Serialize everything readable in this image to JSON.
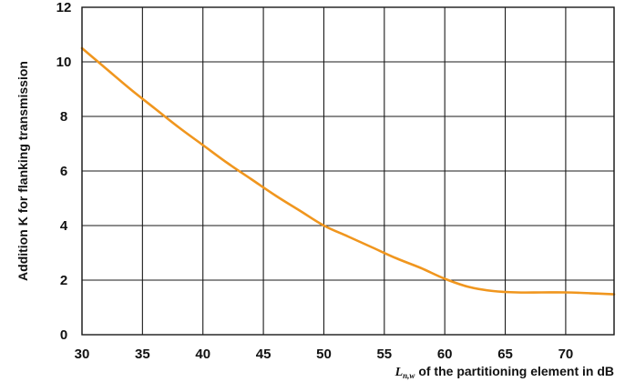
{
  "chart_data": {
    "type": "line",
    "xlabel_symbol": "L",
    "xlabel_subscript": "n,w",
    "xlabel_rest": " of the partitioning element in dB",
    "ylabel": "Addition K for flanking transmission",
    "xlim": [
      30,
      74
    ],
    "ylim": [
      0,
      12
    ],
    "x_ticks": [
      30,
      35,
      40,
      45,
      50,
      55,
      60,
      65,
      70
    ],
    "y_ticks": [
      0,
      2,
      4,
      6,
      8,
      10,
      12
    ],
    "grid": true,
    "line_color": "#f0961e",
    "series": [
      {
        "x": [
          30,
          32,
          34,
          36,
          38,
          40,
          42,
          44,
          46,
          48,
          50,
          52,
          54,
          56,
          58,
          60,
          62,
          64,
          66,
          68,
          70,
          72,
          74
        ],
        "y": [
          10.5,
          9.75,
          9.0,
          8.3,
          7.6,
          6.95,
          6.3,
          5.7,
          5.1,
          4.55,
          4.0,
          3.6,
          3.2,
          2.8,
          2.45,
          2.05,
          1.75,
          1.6,
          1.55,
          1.55,
          1.55,
          1.52,
          1.48
        ]
      }
    ]
  }
}
